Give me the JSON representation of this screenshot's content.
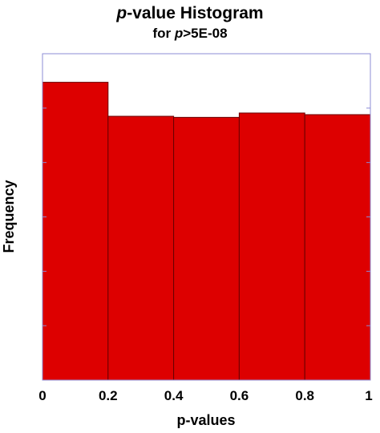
{
  "chart_data": {
    "type": "bar",
    "title": {
      "part1_italic": "p",
      "part1_rest": "-value Histogram"
    },
    "subtitle": {
      "prefix": "for ",
      "italic": "p",
      "suffix": ">5E-08"
    },
    "xlabel": "p-values",
    "ylabel": "Frequency",
    "bins": [
      {
        "start": 0.0,
        "end": 0.2,
        "value": 1.095
      },
      {
        "start": 0.2,
        "end": 0.4,
        "value": 0.97
      },
      {
        "start": 0.4,
        "end": 0.6,
        "value": 0.966
      },
      {
        "start": 0.6,
        "end": 0.8,
        "value": 0.982
      },
      {
        "start": 0.8,
        "end": 1.0,
        "value": 0.976
      }
    ],
    "xlim": [
      0,
      1
    ],
    "ylim": [
      0,
      1.2
    ],
    "x_ticks": [
      "0",
      "0.2",
      "0.4",
      "0.6",
      "0.8",
      "1"
    ],
    "y_tick_values": [
      0,
      0.2,
      0.4,
      0.6,
      0.8,
      1.0,
      1.2
    ],
    "y_tick_labels_shown": false,
    "grid": false,
    "bar_color": "#dd0000",
    "bar_edge_color": "#6a0000",
    "axis_box_color": "#8c8cd6"
  }
}
